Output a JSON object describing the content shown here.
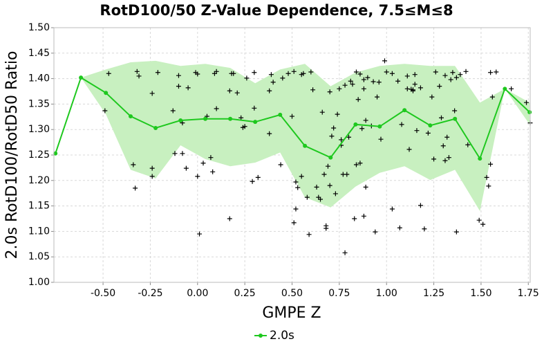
{
  "chart_data": {
    "type": "line",
    "title": "RotD100/50 Z-Value Dependence, 7.5≤M≤8",
    "x_label": "GMPE Z",
    "y_label": "2.0s RotD100/RotD50 Ratio",
    "xlim": [
      -0.76,
      1.76
    ],
    "ylim": [
      1.0,
      1.5
    ],
    "xticks": [
      {
        "value": -0.5,
        "label": "-0.50"
      },
      {
        "value": -0.25,
        "label": "-0.25"
      },
      {
        "value": 0,
        "label": "0.00"
      },
      {
        "value": 0.25,
        "label": "0.25"
      },
      {
        "value": 0.5,
        "label": "0.50"
      },
      {
        "value": 0.75,
        "label": "0.75"
      },
      {
        "value": 1.0,
        "label": "1.00"
      },
      {
        "value": 1.25,
        "label": "1.25"
      },
      {
        "value": 1.5,
        "label": "1.50"
      },
      {
        "value": 1.75,
        "label": "1.75"
      }
    ],
    "yticks": [
      {
        "value": 1.0,
        "label": "1.00"
      },
      {
        "value": 1.05,
        "label": "1.05"
      },
      {
        "value": 1.1,
        "label": "1.10"
      },
      {
        "value": 1.15,
        "label": "1.15"
      },
      {
        "value": 1.2,
        "label": "1.20"
      },
      {
        "value": 1.25,
        "label": "1.25"
      },
      {
        "value": 1.3,
        "label": "1.30"
      },
      {
        "value": 1.35,
        "label": "1.35"
      },
      {
        "value": 1.4,
        "label": "1.40"
      },
      {
        "value": 1.45,
        "label": "1.45"
      },
      {
        "value": 1.5,
        "label": "1.50"
      }
    ],
    "grid": true,
    "series": [
      {
        "name": "2.0s",
        "color": "#1ec81e",
        "x": [
          -0.752,
          -0.617,
          -0.485,
          -0.354,
          -0.222,
          -0.09,
          0.041,
          0.173,
          0.305,
          0.437,
          0.568,
          0.704,
          0.836,
          0.964,
          1.095,
          1.231,
          1.362,
          1.494,
          1.626,
          1.757
        ],
        "values": [
          1.253,
          1.402,
          1.372,
          1.326,
          1.303,
          1.318,
          1.321,
          1.321,
          1.315,
          1.329,
          1.268,
          1.245,
          1.31,
          1.306,
          1.338,
          1.308,
          1.321,
          1.243,
          1.38,
          1.334
        ]
      }
    ],
    "band": {
      "color": "#c8f0c0",
      "upper": [
        1.253,
        1.402,
        1.418,
        1.432,
        1.435,
        1.425,
        1.429,
        1.421,
        1.391,
        1.418,
        1.429,
        1.385,
        1.412,
        1.425,
        1.429,
        1.425,
        1.425,
        1.353,
        1.38,
        1.353
      ],
      "lower": [
        1.253,
        1.402,
        1.33,
        1.221,
        1.204,
        1.269,
        1.242,
        1.228,
        1.235,
        1.255,
        1.167,
        1.147,
        1.188,
        1.215,
        1.228,
        1.201,
        1.221,
        1.14,
        1.38,
        1.31
      ]
    },
    "scatter": {
      "color": "#000000",
      "marker": "+",
      "x": [
        -0.47,
        -0.49,
        -0.34,
        -0.33,
        -0.32,
        -0.31,
        -0.24,
        -0.24,
        -0.24,
        -0.21,
        -0.13,
        -0.12,
        -0.1,
        -0.1,
        -0.08,
        -0.08,
        -0.06,
        -0.05,
        -0.01,
        0.0,
        0.0,
        0.01,
        0.03,
        0.05,
        0.07,
        0.08,
        0.09,
        0.1,
        0.1,
        0.17,
        0.18,
        0.17,
        0.19,
        0.21,
        0.23,
        0.24,
        0.25,
        0.26,
        0.29,
        0.3,
        0.3,
        0.32,
        0.38,
        0.38,
        0.39,
        0.4,
        0.44,
        0.45,
        0.48,
        0.5,
        0.51,
        0.51,
        0.52,
        0.52,
        0.53,
        0.55,
        0.55,
        0.56,
        0.58,
        0.59,
        0.6,
        0.61,
        0.63,
        0.64,
        0.65,
        0.66,
        0.67,
        0.68,
        0.68,
        0.69,
        0.7,
        0.7,
        0.71,
        0.72,
        0.73,
        0.74,
        0.75,
        0.76,
        0.76,
        0.77,
        0.78,
        0.78,
        0.79,
        0.8,
        0.81,
        0.82,
        0.83,
        0.84,
        0.84,
        0.85,
        0.86,
        0.86,
        0.87,
        0.88,
        0.88,
        0.88,
        0.89,
        0.9,
        0.89,
        0.92,
        0.93,
        0.94,
        0.95,
        0.96,
        0.97,
        0.99,
        1.0,
        1.03,
        1.03,
        1.06,
        1.07,
        1.08,
        1.11,
        1.11,
        1.12,
        1.13,
        1.14,
        1.14,
        1.15,
        1.15,
        1.16,
        1.18,
        1.18,
        1.2,
        1.22,
        1.24,
        1.25,
        1.26,
        1.28,
        1.29,
        1.3,
        1.31,
        1.31,
        1.32,
        1.33,
        1.34,
        1.35,
        1.36,
        1.37,
        1.37,
        1.39,
        1.42,
        1.43,
        1.49,
        1.51,
        1.53,
        1.54,
        1.55,
        1.55,
        1.56,
        1.58,
        1.66,
        1.74,
        1.76
      ],
      "values": [
        1.41,
        1.337,
        1.231,
        1.185,
        1.414,
        1.405,
        1.371,
        1.208,
        1.224,
        1.412,
        1.337,
        1.253,
        1.406,
        1.385,
        1.313,
        1.253,
        1.224,
        1.382,
        1.412,
        1.409,
        1.208,
        1.095,
        1.234,
        1.326,
        1.245,
        1.217,
        1.41,
        1.414,
        1.341,
        1.376,
        1.41,
        1.125,
        1.41,
        1.372,
        1.323,
        1.304,
        1.306,
        1.401,
        1.198,
        1.412,
        1.342,
        1.206,
        1.292,
        1.376,
        1.408,
        1.393,
        1.231,
        1.401,
        1.41,
        1.326,
        1.117,
        1.414,
        1.197,
        1.144,
        1.186,
        1.208,
        1.408,
        1.41,
        1.167,
        1.094,
        1.413,
        1.378,
        1.187,
        1.167,
        1.163,
        1.334,
        1.212,
        1.111,
        1.106,
        1.228,
        1.19,
        1.374,
        1.287,
        1.303,
        1.174,
        1.33,
        1.38,
        1.28,
        1.269,
        1.212,
        1.387,
        1.058,
        1.212,
        1.285,
        1.395,
        1.389,
        1.125,
        1.231,
        1.413,
        1.359,
        1.234,
        1.409,
        1.302,
        1.38,
        1.13,
        1.398,
        1.187,
        1.402,
        1.318,
        1.307,
        1.394,
        1.099,
        1.364,
        1.393,
        1.281,
        1.435,
        1.413,
        1.41,
        1.144,
        1.395,
        1.107,
        1.31,
        1.38,
        1.405,
        1.261,
        1.379,
        1.376,
        1.378,
        1.389,
        1.408,
        1.298,
        1.382,
        1.151,
        1.105,
        1.293,
        1.364,
        1.242,
        1.413,
        1.385,
        1.323,
        1.268,
        1.406,
        1.239,
        1.285,
        1.245,
        1.398,
        1.412,
        1.337,
        1.099,
        1.402,
        1.408,
        1.414,
        1.27,
        1.122,
        1.114,
        1.206,
        1.189,
        1.412,
        1.232,
        1.364,
        1.413,
        1.38,
        1.353,
        1.313
      ]
    }
  }
}
